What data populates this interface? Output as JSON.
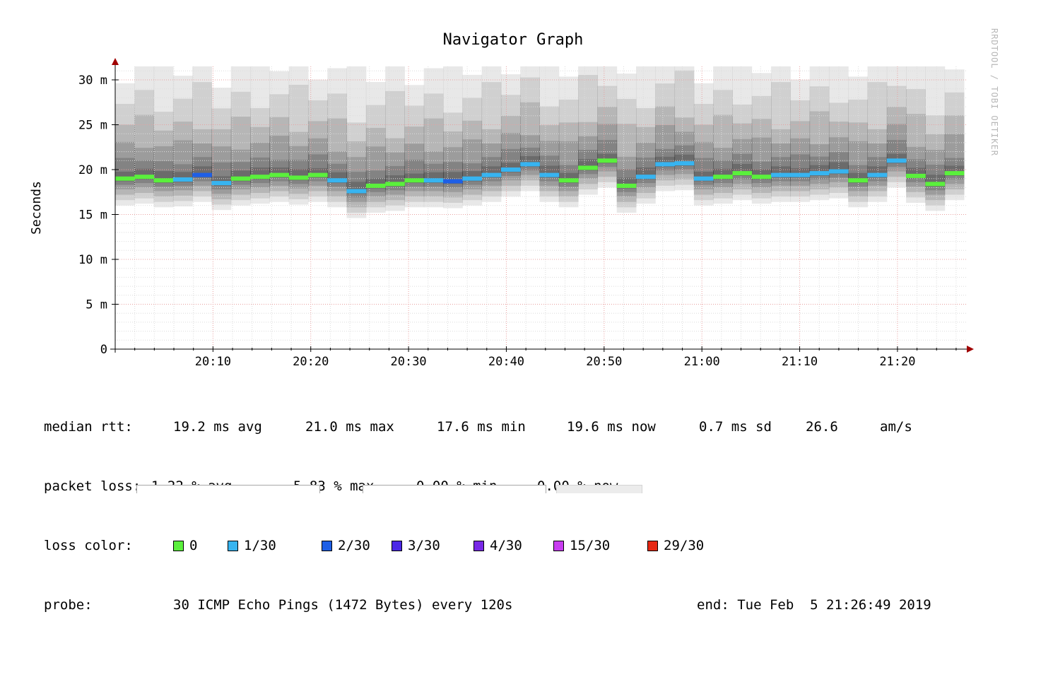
{
  "chart_data": {
    "type": "line",
    "title": "Navigator Graph",
    "ylabel": "Seconds",
    "watermark": "RRDTOOL / TOBI OETIKER",
    "y_ticks": [
      "0",
      "5 m",
      "10 m",
      "15 m",
      "20 m",
      "25 m",
      "30 m"
    ],
    "y_tick_values": [
      0,
      5,
      10,
      15,
      20,
      25,
      30
    ],
    "ylim": [
      0,
      31.5
    ],
    "x_ticks": [
      "20:10",
      "20:20",
      "20:30",
      "20:40",
      "20:50",
      "21:00",
      "21:10",
      "21:20"
    ],
    "x_tick_minutes": [
      10,
      20,
      30,
      40,
      50,
      60,
      70,
      80
    ],
    "xlim_minutes": [
      0,
      86.8
    ],
    "grid": true,
    "series": [
      {
        "values_ms": [
          19.0,
          19.2,
          18.8,
          18.9,
          19.4,
          18.5,
          19.0,
          19.2,
          19.4,
          19.1,
          19.4,
          18.8,
          17.6,
          18.2,
          18.4,
          18.8,
          18.8,
          18.7,
          19.0,
          19.4,
          20.0,
          20.6,
          19.4,
          18.8,
          20.2,
          21.0,
          18.2,
          19.2,
          20.6,
          20.7,
          19.0,
          19.2,
          19.6,
          19.2,
          19.4,
          19.4,
          19.6,
          19.8,
          18.8,
          19.4,
          21.0,
          19.3,
          18.4,
          19.6
        ],
        "loss_index": [
          0,
          0,
          0,
          1,
          2,
          1,
          0,
          0,
          0,
          0,
          0,
          1,
          1,
          0,
          0,
          0,
          1,
          2,
          1,
          1,
          1,
          1,
          1,
          0,
          0,
          0,
          0,
          1,
          1,
          1,
          1,
          0,
          0,
          0,
          1,
          1,
          1,
          1,
          0,
          1,
          1,
          0,
          0,
          0
        ]
      }
    ],
    "loss_colors": [
      "#5af03c",
      "#37b4f0",
      "#1e5fe6",
      "#4b28e6",
      "#7828e6",
      "#c83cf0",
      "#e62814"
    ]
  },
  "legend": {
    "median": {
      "label": "median rtt:",
      "avg": "19.2 ms avg",
      "max": "21.0 ms max",
      "min": "17.6 ms min",
      "now": "19.6 ms now",
      "sd": "0.7 ms sd",
      "amps": "26.6",
      "amps_unit": "am/s"
    },
    "loss": {
      "label": "packet loss:",
      "avg": "1.22 % avg",
      "max": "5.83 % max",
      "min": "0.00 % min",
      "now": "0.00 % now"
    },
    "loss_color": {
      "label": "loss color:",
      "items": [
        {
          "label": "0",
          "color": "#5af03c"
        },
        {
          "label": "1/30",
          "color": "#37b4f0"
        },
        {
          "label": "2/30",
          "color": "#1e5fe6"
        },
        {
          "label": "3/30",
          "color": "#4b28e6"
        },
        {
          "label": "4/30",
          "color": "#7828e6"
        },
        {
          "label": "15/30",
          "color": "#c83cf0"
        },
        {
          "label": "29/30",
          "color": "#e62814"
        }
      ]
    },
    "probe": {
      "label": "probe:",
      "desc": "30 ICMP Echo Pings (1472 Bytes) every 120s",
      "end": "end: Tue Feb  5 21:26:49 2019"
    }
  }
}
